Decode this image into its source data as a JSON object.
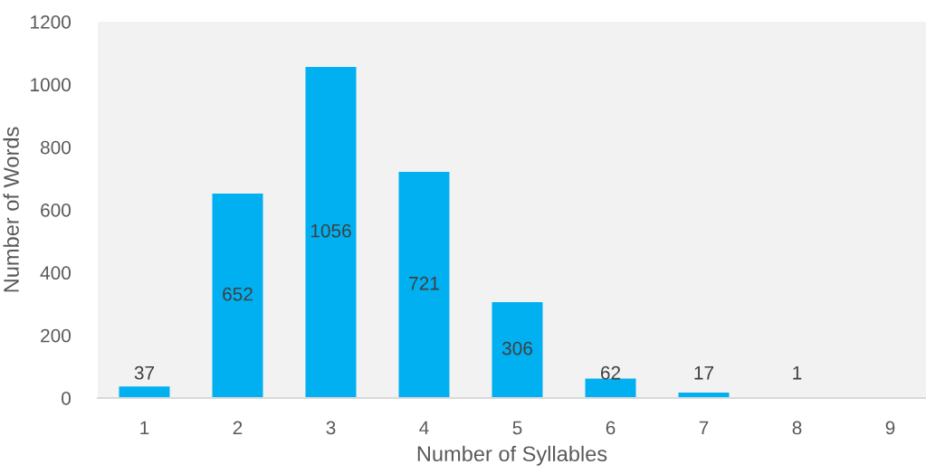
{
  "chart_data": {
    "type": "bar",
    "xlabel": "Number of Syllables",
    "ylabel": "Number of Words",
    "categories": [
      "1",
      "2",
      "3",
      "4",
      "5",
      "6",
      "7",
      "8",
      "9"
    ],
    "values": [
      37,
      652,
      1056,
      721,
      306,
      62,
      17,
      1,
      null
    ],
    "color": "#00b0f0",
    "ylim": [
      0,
      1200
    ],
    "yticks": [
      0,
      200,
      400,
      600,
      800,
      1000,
      1200
    ],
    "data_labels": true,
    "grid": false
  }
}
